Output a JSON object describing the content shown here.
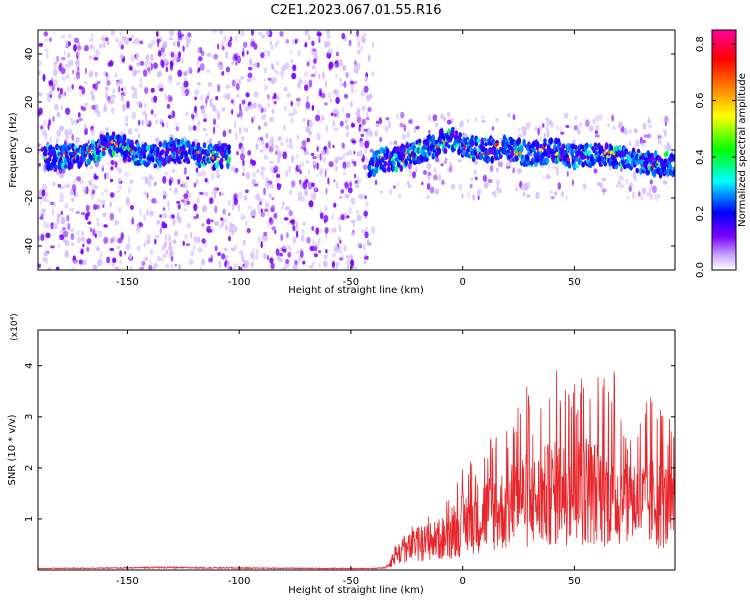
{
  "figure_title": "C2E1.2023.067.01.55.R16",
  "chart_data": [
    {
      "type": "heatmap",
      "xlabel": "Height of straight line (km)",
      "ylabel": "Frequency (Hz)",
      "xlim": [
        -190,
        95
      ],
      "ylim": [
        -50,
        50
      ],
      "x_ticks": [
        -150,
        -100,
        -50,
        0,
        50
      ],
      "y_ticks": [
        -40,
        -20,
        0,
        20,
        40
      ],
      "colorbar": {
        "label": "Normalized spectral amplitude",
        "range": [
          0,
          0.85
        ],
        "ticks": [
          0.0,
          0.2,
          0.4,
          0.6,
          0.8
        ],
        "colormap": [
          "#ffffff",
          "#c8a8ff",
          "#7b00ff",
          "#0000ff",
          "#00ffff",
          "#00ff00",
          "#ffff00",
          "#ff8000",
          "#ff0000",
          "#ff00a0"
        ]
      },
      "ridge": {
        "x": [
          -185,
          -170,
          -160,
          -155,
          -150,
          -140,
          -130,
          -120,
          -110,
          -105,
          -100,
          -90,
          -80,
          -70,
          -60,
          -50,
          -42,
          -40,
          -35,
          -30,
          -20,
          -10,
          -5,
          0,
          10,
          20,
          30,
          40,
          50,
          60,
          70,
          80,
          90,
          95
        ],
        "y": [
          -3,
          -2,
          2,
          3,
          0,
          -3,
          0,
          -2,
          -3,
          -2,
          -3,
          -3,
          -3,
          -3,
          -3,
          -3,
          -10,
          -6,
          -4,
          -4,
          -1,
          3,
          5,
          1,
          0,
          1,
          -2,
          0,
          -3,
          -2,
          -3,
          -5,
          -6,
          -6
        ]
      },
      "noise_regions": [
        {
          "x_range": [
            -190,
            -40
          ],
          "y_range": [
            -50,
            50
          ],
          "level": "high"
        },
        {
          "x_range": [
            -40,
            95
          ],
          "y_range": [
            -20,
            15
          ],
          "level": "low"
        }
      ]
    },
    {
      "type": "line",
      "xlabel": "Height of straight line (km)",
      "ylabel": "SNR (10 * v/v)",
      "y_multiplier": "(x10⁴)",
      "xlim": [
        -190,
        95
      ],
      "ylim": [
        0,
        4.7
      ],
      "x_ticks": [
        -150,
        -100,
        -50,
        0,
        50
      ],
      "y_ticks": [
        1,
        2,
        3,
        4
      ],
      "color": "#e8252a",
      "series": [
        {
          "x": [
            -190,
            -150,
            -140,
            -100,
            -60,
            -40,
            -34,
            -30,
            -20,
            -10,
            -5,
            0,
            10,
            20,
            27,
            30,
            35,
            40,
            45,
            47,
            50,
            55,
            60,
            65,
            70,
            75,
            80,
            85,
            90,
            95
          ],
          "y_envelope": [
            0.03,
            0.05,
            0.08,
            0.06,
            0.05,
            0.05,
            0.08,
            0.6,
            1.0,
            1.2,
            1.5,
            2.0,
            2.5,
            3.0,
            4.0,
            3.4,
            3.5,
            4.3,
            3.9,
            4.6,
            3.7,
            4.3,
            3.9,
            4.3,
            3.6,
            3.3,
            3.5,
            3.4,
            3.5,
            2.5
          ],
          "y_mean": [
            0.03,
            0.04,
            0.05,
            0.04,
            0.03,
            0.03,
            0.05,
            0.3,
            0.5,
            0.6,
            0.7,
            0.9,
            1.1,
            1.2,
            1.4,
            1.3,
            1.4,
            1.5,
            1.5,
            1.6,
            1.5,
            1.6,
            1.5,
            1.5,
            1.4,
            1.4,
            1.3,
            1.3,
            1.3,
            1.1
          ]
        }
      ]
    }
  ]
}
